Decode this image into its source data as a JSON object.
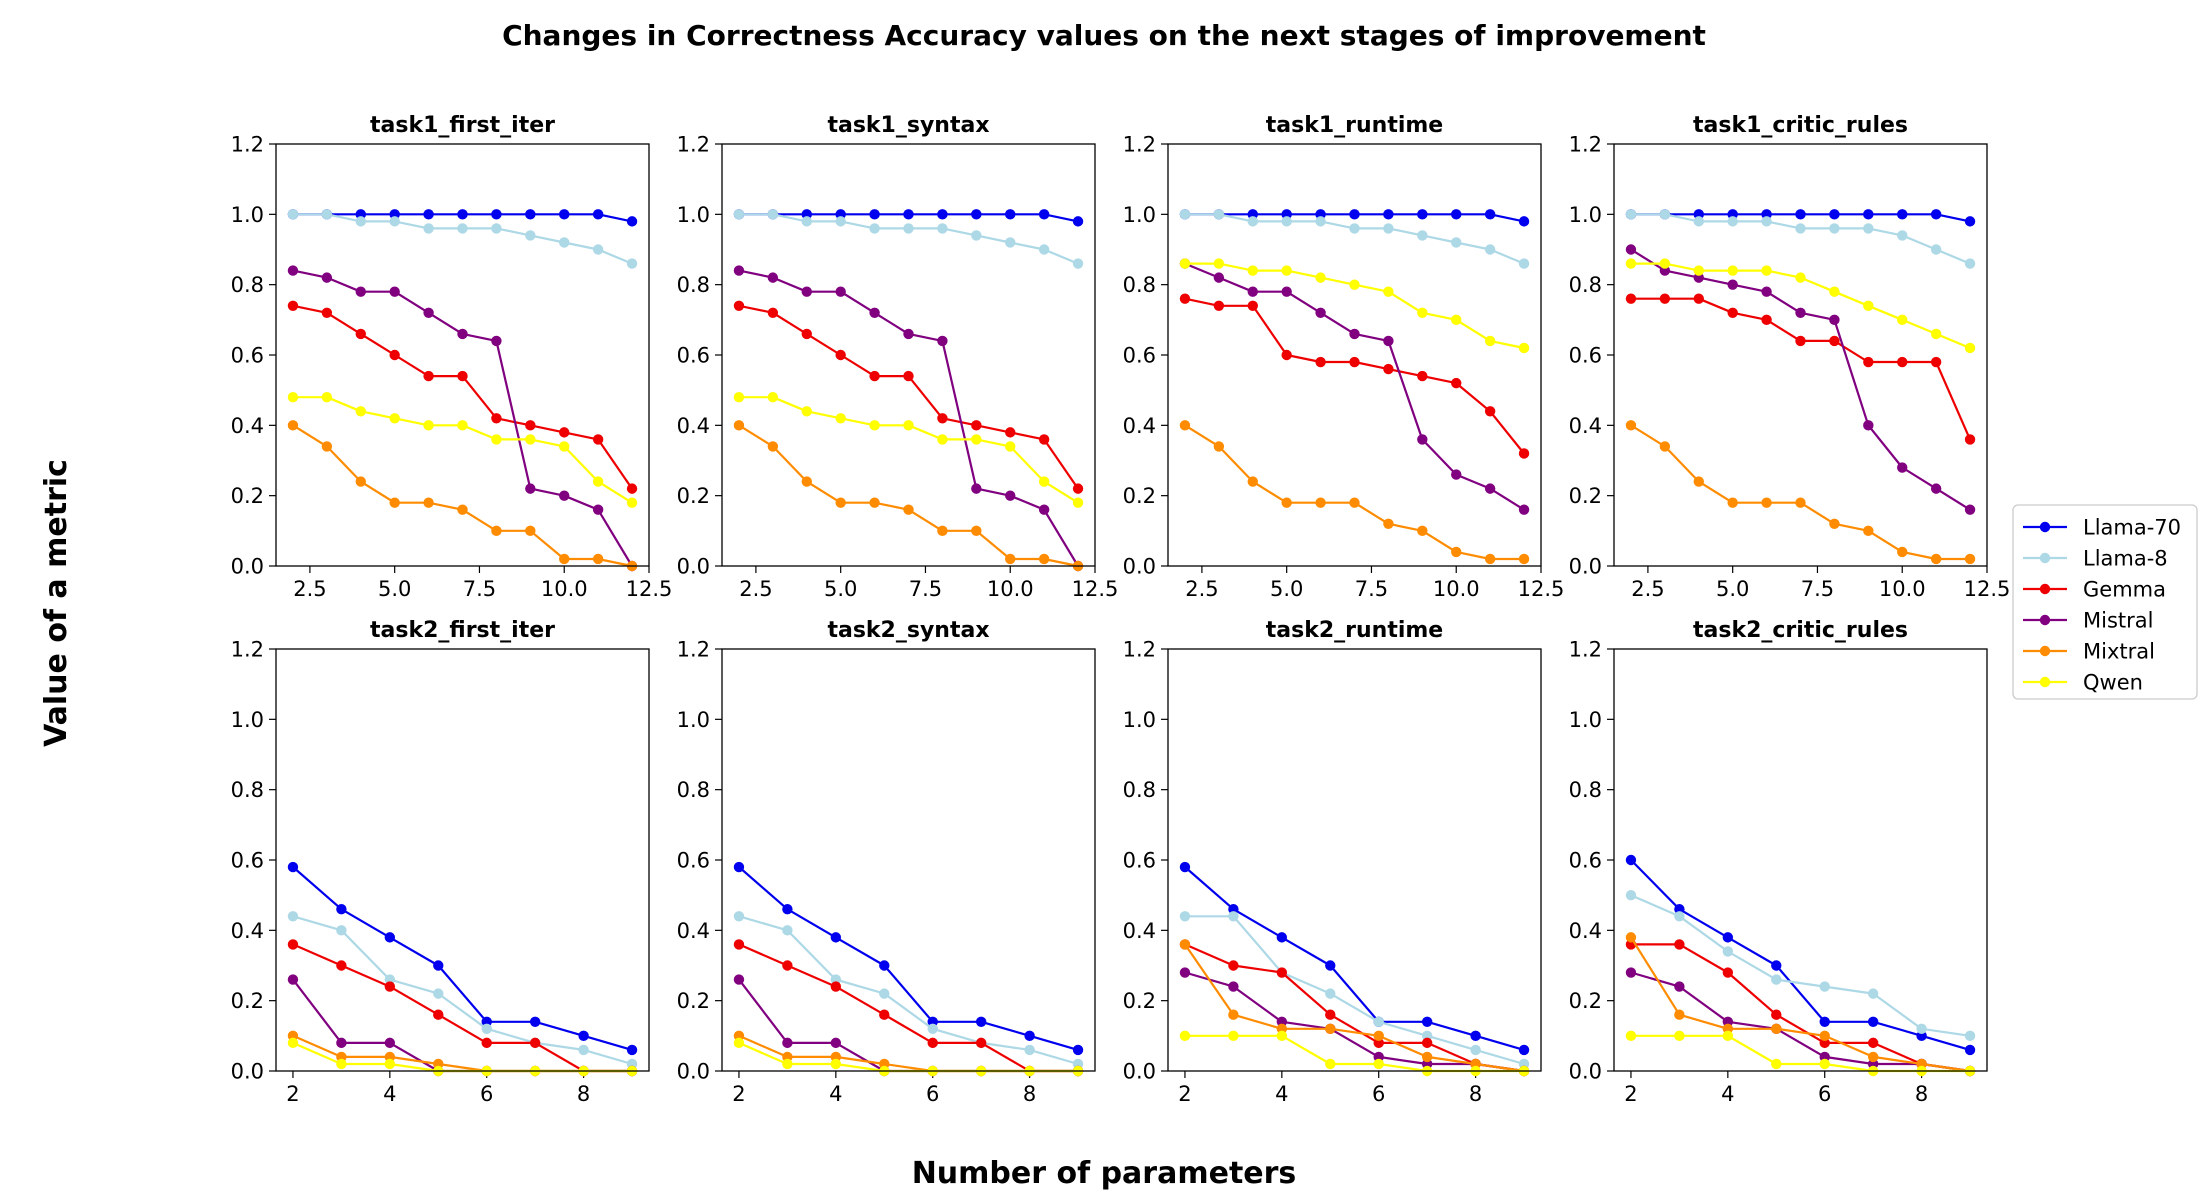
{
  "figure": {
    "title": "Changes in Correctness Accuracy values on the next stages of improvement",
    "xlabel": "Number of parameters",
    "ylabel": "Value of a metric"
  },
  "colors": {
    "Llama-70": "#0000ee",
    "Llama-8": "#add8e6",
    "Gemma": "#ee0000",
    "Mistral": "#800080",
    "Mixtral": "#ff8c00",
    "Qwen": "#ffff00"
  },
  "legend": {
    "placement": "right",
    "entries": [
      "Llama-70",
      "Llama-8",
      "Gemma",
      "Mistral",
      "Mixtral",
      "Qwen"
    ]
  },
  "chart_data": [
    {
      "type": "line",
      "title": "task1_first_iter",
      "xlim": [
        1.5,
        12.5
      ],
      "ylim": [
        0,
        1.2
      ],
      "xticks": [
        2.5,
        5.0,
        7.5,
        10.0,
        12.5
      ],
      "yticks": [
        0.0,
        0.2,
        0.4,
        0.6,
        0.8,
        1.0,
        1.2
      ],
      "x": [
        2,
        3,
        4,
        5,
        6,
        7,
        8,
        9,
        10,
        11,
        12
      ],
      "series": [
        {
          "name": "Llama-70",
          "values": [
            1.0,
            1.0,
            1.0,
            1.0,
            1.0,
            1.0,
            1.0,
            1.0,
            1.0,
            1.0,
            0.98
          ]
        },
        {
          "name": "Llama-8",
          "values": [
            1.0,
            1.0,
            0.98,
            0.98,
            0.96,
            0.96,
            0.96,
            0.94,
            0.92,
            0.9,
            0.86
          ]
        },
        {
          "name": "Gemma",
          "values": [
            0.74,
            0.72,
            0.66,
            0.6,
            0.54,
            0.54,
            0.42,
            0.4,
            0.38,
            0.36,
            0.22
          ]
        },
        {
          "name": "Mistral",
          "values": [
            0.84,
            0.82,
            0.78,
            0.78,
            0.72,
            0.66,
            0.64,
            0.22,
            0.2,
            0.16,
            0.0
          ]
        },
        {
          "name": "Mixtral",
          "values": [
            0.4,
            0.34,
            0.24,
            0.18,
            0.18,
            0.16,
            0.1,
            0.1,
            0.02,
            0.02,
            0.0
          ]
        },
        {
          "name": "Qwen",
          "values": [
            0.48,
            0.48,
            0.44,
            0.42,
            0.4,
            0.4,
            0.36,
            0.36,
            0.34,
            0.24,
            0.18
          ]
        }
      ]
    },
    {
      "type": "line",
      "title": "task1_syntax",
      "xlim": [
        1.5,
        12.5
      ],
      "ylim": [
        0,
        1.2
      ],
      "xticks": [
        2.5,
        5.0,
        7.5,
        10.0,
        12.5
      ],
      "yticks": [
        0.0,
        0.2,
        0.4,
        0.6,
        0.8,
        1.0,
        1.2
      ],
      "x": [
        2,
        3,
        4,
        5,
        6,
        7,
        8,
        9,
        10,
        11,
        12
      ],
      "series": [
        {
          "name": "Llama-70",
          "values": [
            1.0,
            1.0,
            1.0,
            1.0,
            1.0,
            1.0,
            1.0,
            1.0,
            1.0,
            1.0,
            0.98
          ]
        },
        {
          "name": "Llama-8",
          "values": [
            1.0,
            1.0,
            0.98,
            0.98,
            0.96,
            0.96,
            0.96,
            0.94,
            0.92,
            0.9,
            0.86
          ]
        },
        {
          "name": "Gemma",
          "values": [
            0.74,
            0.72,
            0.66,
            0.6,
            0.54,
            0.54,
            0.42,
            0.4,
            0.38,
            0.36,
            0.22
          ]
        },
        {
          "name": "Mistral",
          "values": [
            0.84,
            0.82,
            0.78,
            0.78,
            0.72,
            0.66,
            0.64,
            0.22,
            0.2,
            0.16,
            0.0
          ]
        },
        {
          "name": "Mixtral",
          "values": [
            0.4,
            0.34,
            0.24,
            0.18,
            0.18,
            0.16,
            0.1,
            0.1,
            0.02,
            0.02,
            0.0
          ]
        },
        {
          "name": "Qwen",
          "values": [
            0.48,
            0.48,
            0.44,
            0.42,
            0.4,
            0.4,
            0.36,
            0.36,
            0.34,
            0.24,
            0.18
          ]
        }
      ]
    },
    {
      "type": "line",
      "title": "task1_runtime",
      "xlim": [
        1.5,
        12.5
      ],
      "ylim": [
        0,
        1.2
      ],
      "xticks": [
        2.5,
        5.0,
        7.5,
        10.0,
        12.5
      ],
      "yticks": [
        0.0,
        0.2,
        0.4,
        0.6,
        0.8,
        1.0,
        1.2
      ],
      "x": [
        2,
        3,
        4,
        5,
        6,
        7,
        8,
        9,
        10,
        11,
        12
      ],
      "series": [
        {
          "name": "Llama-70",
          "values": [
            1.0,
            1.0,
            1.0,
            1.0,
            1.0,
            1.0,
            1.0,
            1.0,
            1.0,
            1.0,
            0.98
          ]
        },
        {
          "name": "Llama-8",
          "values": [
            1.0,
            1.0,
            0.98,
            0.98,
            0.98,
            0.96,
            0.96,
            0.94,
            0.92,
            0.9,
            0.86
          ]
        },
        {
          "name": "Gemma",
          "values": [
            0.76,
            0.74,
            0.74,
            0.6,
            0.58,
            0.58,
            0.56,
            0.54,
            0.52,
            0.44,
            0.32
          ]
        },
        {
          "name": "Mistral",
          "values": [
            0.86,
            0.82,
            0.78,
            0.78,
            0.72,
            0.66,
            0.64,
            0.36,
            0.26,
            0.22,
            0.16
          ]
        },
        {
          "name": "Mixtral",
          "values": [
            0.4,
            0.34,
            0.24,
            0.18,
            0.18,
            0.18,
            0.12,
            0.1,
            0.04,
            0.02,
            0.02
          ]
        },
        {
          "name": "Qwen",
          "values": [
            0.86,
            0.86,
            0.84,
            0.84,
            0.82,
            0.8,
            0.78,
            0.72,
            0.7,
            0.64,
            0.62
          ]
        }
      ]
    },
    {
      "type": "line",
      "title": "task1_critic_rules",
      "xlim": [
        1.5,
        12.5
      ],
      "ylim": [
        0,
        1.2
      ],
      "xticks": [
        2.5,
        5.0,
        7.5,
        10.0,
        12.5
      ],
      "yticks": [
        0.0,
        0.2,
        0.4,
        0.6,
        0.8,
        1.0,
        1.2
      ],
      "x": [
        2,
        3,
        4,
        5,
        6,
        7,
        8,
        9,
        10,
        11,
        12
      ],
      "series": [
        {
          "name": "Llama-70",
          "values": [
            1.0,
            1.0,
            1.0,
            1.0,
            1.0,
            1.0,
            1.0,
            1.0,
            1.0,
            1.0,
            0.98
          ]
        },
        {
          "name": "Llama-8",
          "values": [
            1.0,
            1.0,
            0.98,
            0.98,
            0.98,
            0.96,
            0.96,
            0.96,
            0.94,
            0.9,
            0.86
          ]
        },
        {
          "name": "Gemma",
          "values": [
            0.76,
            0.76,
            0.76,
            0.72,
            0.7,
            0.64,
            0.64,
            0.58,
            0.58,
            0.58,
            0.36
          ]
        },
        {
          "name": "Mistral",
          "values": [
            0.9,
            0.84,
            0.82,
            0.8,
            0.78,
            0.72,
            0.7,
            0.4,
            0.28,
            0.22,
            0.16
          ]
        },
        {
          "name": "Mixtral",
          "values": [
            0.4,
            0.34,
            0.24,
            0.18,
            0.18,
            0.18,
            0.12,
            0.1,
            0.04,
            0.02,
            0.02
          ]
        },
        {
          "name": "Qwen",
          "values": [
            0.86,
            0.86,
            0.84,
            0.84,
            0.84,
            0.82,
            0.78,
            0.74,
            0.7,
            0.66,
            0.62
          ]
        }
      ]
    },
    {
      "type": "line",
      "title": "task2_first_iter",
      "xlim": [
        1.65,
        9.35
      ],
      "ylim": [
        0,
        1.2
      ],
      "xticks": [
        2,
        4,
        6,
        8
      ],
      "yticks": [
        0.0,
        0.2,
        0.4,
        0.6,
        0.8,
        1.0,
        1.2
      ],
      "x": [
        2,
        3,
        4,
        5,
        6,
        7,
        8,
        9
      ],
      "series": [
        {
          "name": "Llama-70",
          "values": [
            0.58,
            0.46,
            0.38,
            0.3,
            0.14,
            0.14,
            0.1,
            0.06
          ]
        },
        {
          "name": "Llama-8",
          "values": [
            0.44,
            0.4,
            0.26,
            0.22,
            0.12,
            0.08,
            0.06,
            0.02
          ]
        },
        {
          "name": "Gemma",
          "values": [
            0.36,
            0.3,
            0.24,
            0.16,
            0.08,
            0.08,
            0.0,
            0.0
          ]
        },
        {
          "name": "Mistral",
          "values": [
            0.26,
            0.08,
            0.08,
            0.0,
            0.0,
            0.0,
            0.0,
            0.0
          ]
        },
        {
          "name": "Mixtral",
          "values": [
            0.1,
            0.04,
            0.04,
            0.02,
            0.0,
            0.0,
            0.0,
            0.0
          ]
        },
        {
          "name": "Qwen",
          "values": [
            0.08,
            0.02,
            0.02,
            0.0,
            0.0,
            0.0,
            0.0,
            0.0
          ]
        }
      ]
    },
    {
      "type": "line",
      "title": "task2_syntax",
      "xlim": [
        1.65,
        9.35
      ],
      "ylim": [
        0,
        1.2
      ],
      "xticks": [
        2,
        4,
        6,
        8
      ],
      "yticks": [
        0.0,
        0.2,
        0.4,
        0.6,
        0.8,
        1.0,
        1.2
      ],
      "x": [
        2,
        3,
        4,
        5,
        6,
        7,
        8,
        9
      ],
      "series": [
        {
          "name": "Llama-70",
          "values": [
            0.58,
            0.46,
            0.38,
            0.3,
            0.14,
            0.14,
            0.1,
            0.06
          ]
        },
        {
          "name": "Llama-8",
          "values": [
            0.44,
            0.4,
            0.26,
            0.22,
            0.12,
            0.08,
            0.06,
            0.02
          ]
        },
        {
          "name": "Gemma",
          "values": [
            0.36,
            0.3,
            0.24,
            0.16,
            0.08,
            0.08,
            0.0,
            0.0
          ]
        },
        {
          "name": "Mistral",
          "values": [
            0.26,
            0.08,
            0.08,
            0.0,
            0.0,
            0.0,
            0.0,
            0.0
          ]
        },
        {
          "name": "Mixtral",
          "values": [
            0.1,
            0.04,
            0.04,
            0.02,
            0.0,
            0.0,
            0.0,
            0.0
          ]
        },
        {
          "name": "Qwen",
          "values": [
            0.08,
            0.02,
            0.02,
            0.0,
            0.0,
            0.0,
            0.0,
            0.0
          ]
        }
      ]
    },
    {
      "type": "line",
      "title": "task2_runtime",
      "xlim": [
        1.65,
        9.35
      ],
      "ylim": [
        0,
        1.2
      ],
      "xticks": [
        2,
        4,
        6,
        8
      ],
      "yticks": [
        0.0,
        0.2,
        0.4,
        0.6,
        0.8,
        1.0,
        1.2
      ],
      "x": [
        2,
        3,
        4,
        5,
        6,
        7,
        8,
        9
      ],
      "series": [
        {
          "name": "Llama-70",
          "values": [
            0.58,
            0.46,
            0.38,
            0.3,
            0.14,
            0.14,
            0.1,
            0.06
          ]
        },
        {
          "name": "Llama-8",
          "values": [
            0.44,
            0.44,
            0.28,
            0.22,
            0.14,
            0.1,
            0.06,
            0.02
          ]
        },
        {
          "name": "Gemma",
          "values": [
            0.36,
            0.3,
            0.28,
            0.16,
            0.08,
            0.08,
            0.02,
            0.0
          ]
        },
        {
          "name": "Mistral",
          "values": [
            0.28,
            0.24,
            0.14,
            0.12,
            0.04,
            0.02,
            0.02,
            0.0
          ]
        },
        {
          "name": "Mixtral",
          "values": [
            0.36,
            0.16,
            0.12,
            0.12,
            0.1,
            0.04,
            0.02,
            0.0
          ]
        },
        {
          "name": "Qwen",
          "values": [
            0.1,
            0.1,
            0.1,
            0.02,
            0.02,
            0.0,
            0.0,
            0.0
          ]
        }
      ]
    },
    {
      "type": "line",
      "title": "task2_critic_rules",
      "xlim": [
        1.65,
        9.35
      ],
      "ylim": [
        0,
        1.2
      ],
      "xticks": [
        2,
        4,
        6,
        8
      ],
      "yticks": [
        0.0,
        0.2,
        0.4,
        0.6,
        0.8,
        1.0,
        1.2
      ],
      "x": [
        2,
        3,
        4,
        5,
        6,
        7,
        8,
        9
      ],
      "series": [
        {
          "name": "Llama-70",
          "values": [
            0.6,
            0.46,
            0.38,
            0.3,
            0.14,
            0.14,
            0.1,
            0.06
          ]
        },
        {
          "name": "Llama-8",
          "values": [
            0.5,
            0.44,
            0.34,
            0.26,
            0.24,
            0.22,
            0.12,
            0.1
          ]
        },
        {
          "name": "Gemma",
          "values": [
            0.36,
            0.36,
            0.28,
            0.16,
            0.08,
            0.08,
            0.02,
            0.0
          ]
        },
        {
          "name": "Mistral",
          "values": [
            0.28,
            0.24,
            0.14,
            0.12,
            0.04,
            0.02,
            0.02,
            0.0
          ]
        },
        {
          "name": "Mixtral",
          "values": [
            0.38,
            0.16,
            0.12,
            0.12,
            0.1,
            0.04,
            0.02,
            0.0
          ]
        },
        {
          "name": "Qwen",
          "values": [
            0.1,
            0.1,
            0.1,
            0.02,
            0.02,
            0.0,
            0.0,
            0.0
          ]
        }
      ]
    }
  ]
}
